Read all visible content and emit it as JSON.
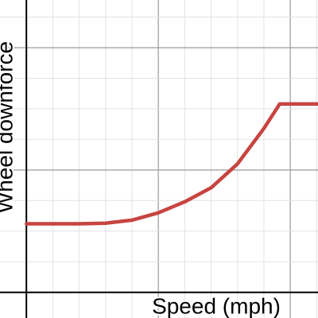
{
  "chart_data": {
    "type": "line",
    "x_label": "Speed (mph)",
    "y_label": "Wheel downforce",
    "x": [
      0,
      2,
      3,
      4,
      5,
      6,
      7,
      8,
      9,
      9.6,
      11.05
    ],
    "values": [
      1.12,
      1.12,
      1.13,
      1.18,
      1.3,
      1.48,
      1.71,
      2.1,
      2.68,
      3.08,
      3.08
    ],
    "color": "#c74440",
    "xlim": [
      -1,
      11.05
    ],
    "ylim": [
      -0.42,
      4.78
    ],
    "xticks": [
      0,
      1,
      2,
      3,
      4,
      5,
      6,
      7,
      8,
      9,
      10,
      11
    ],
    "yticks": [
      0,
      0.5,
      1,
      1.5,
      2,
      2.5,
      3,
      3.5,
      4,
      4.5
    ],
    "xticks_major": [
      5,
      10
    ],
    "yticks_major": [
      2,
      4
    ],
    "grid": true
  }
}
